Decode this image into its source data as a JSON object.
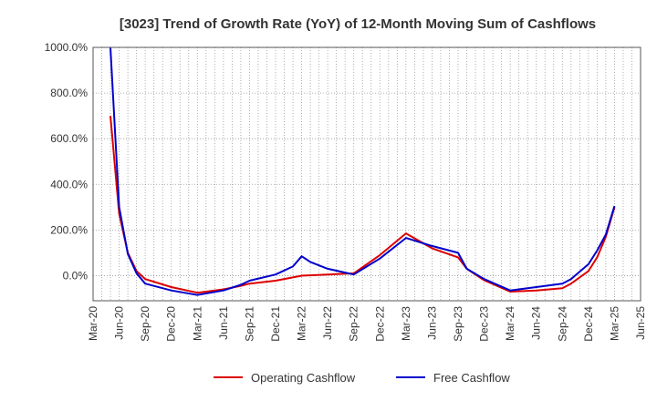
{
  "chart_data": {
    "type": "line",
    "title": "[3023]  Trend of Growth Rate (YoY) of 12-Month Moving Sum of Cashflows",
    "xlabel": "",
    "ylabel": "",
    "ylim": [
      -110,
      1000
    ],
    "y_ticks": [
      "1000.0%",
      "800.0%",
      "600.0%",
      "400.0%",
      "200.0%",
      "0.0%"
    ],
    "y_tick_values": [
      1000,
      800,
      600,
      400,
      200,
      0
    ],
    "x_ticks": [
      "Mar-20",
      "Jun-20",
      "Sep-20",
      "Dec-20",
      "Mar-21",
      "Jun-21",
      "Sep-21",
      "Dec-21",
      "Mar-22",
      "Jun-22",
      "Sep-22",
      "Dec-22",
      "Mar-23",
      "Jun-23",
      "Sep-23",
      "Dec-23",
      "Mar-24",
      "Jun-24",
      "Sep-24",
      "Dec-24",
      "Mar-25",
      "Jun-25"
    ],
    "grid": true,
    "legend_position": "bottom",
    "series": [
      {
        "name": "Operating Cashflow",
        "color": "#dd0000",
        "points": [
          [
            "2020-05",
            700
          ],
          [
            "2020-06",
            270
          ],
          [
            "2020-07",
            100
          ],
          [
            "2020-08",
            20
          ],
          [
            "2020-09",
            -15
          ],
          [
            "2020-12",
            -50
          ],
          [
            "2021-03",
            -75
          ],
          [
            "2021-06",
            -60
          ],
          [
            "2021-08",
            -45
          ],
          [
            "2021-09",
            -35
          ],
          [
            "2021-12",
            -22
          ],
          [
            "2022-03",
            0
          ],
          [
            "2022-06",
            5
          ],
          [
            "2022-09",
            10
          ],
          [
            "2022-12",
            90
          ],
          [
            "2023-03",
            185
          ],
          [
            "2023-06",
            120
          ],
          [
            "2023-09",
            80
          ],
          [
            "2023-10",
            30
          ],
          [
            "2023-12",
            -20
          ],
          [
            "2024-03",
            -70
          ],
          [
            "2024-06",
            -65
          ],
          [
            "2024-09",
            -55
          ],
          [
            "2024-10",
            -35
          ],
          [
            "2024-12",
            20
          ],
          [
            "2025-01",
            80
          ],
          [
            "2025-02",
            170
          ],
          [
            "2025-03",
            300
          ]
        ]
      },
      {
        "name": "Free Cashflow",
        "color": "#0000cc",
        "points": [
          [
            "2020-05",
            1000
          ],
          [
            "2020-06",
            300
          ],
          [
            "2020-07",
            95
          ],
          [
            "2020-08",
            10
          ],
          [
            "2020-09",
            -35
          ],
          [
            "2020-12",
            -65
          ],
          [
            "2021-03",
            -85
          ],
          [
            "2021-06",
            -65
          ],
          [
            "2021-08",
            -40
          ],
          [
            "2021-09",
            -22
          ],
          [
            "2021-12",
            5
          ],
          [
            "2022-02",
            40
          ],
          [
            "2022-03",
            85
          ],
          [
            "2022-04",
            60
          ],
          [
            "2022-06",
            30
          ],
          [
            "2022-09",
            5
          ],
          [
            "2022-12",
            75
          ],
          [
            "2023-03",
            165
          ],
          [
            "2023-06",
            130
          ],
          [
            "2023-09",
            100
          ],
          [
            "2023-10",
            30
          ],
          [
            "2023-12",
            -15
          ],
          [
            "2024-03",
            -65
          ],
          [
            "2024-06",
            -50
          ],
          [
            "2024-09",
            -35
          ],
          [
            "2024-10",
            -15
          ],
          [
            "2024-12",
            50
          ],
          [
            "2025-01",
            110
          ],
          [
            "2025-02",
            180
          ],
          [
            "2025-03",
            305
          ]
        ]
      }
    ]
  }
}
